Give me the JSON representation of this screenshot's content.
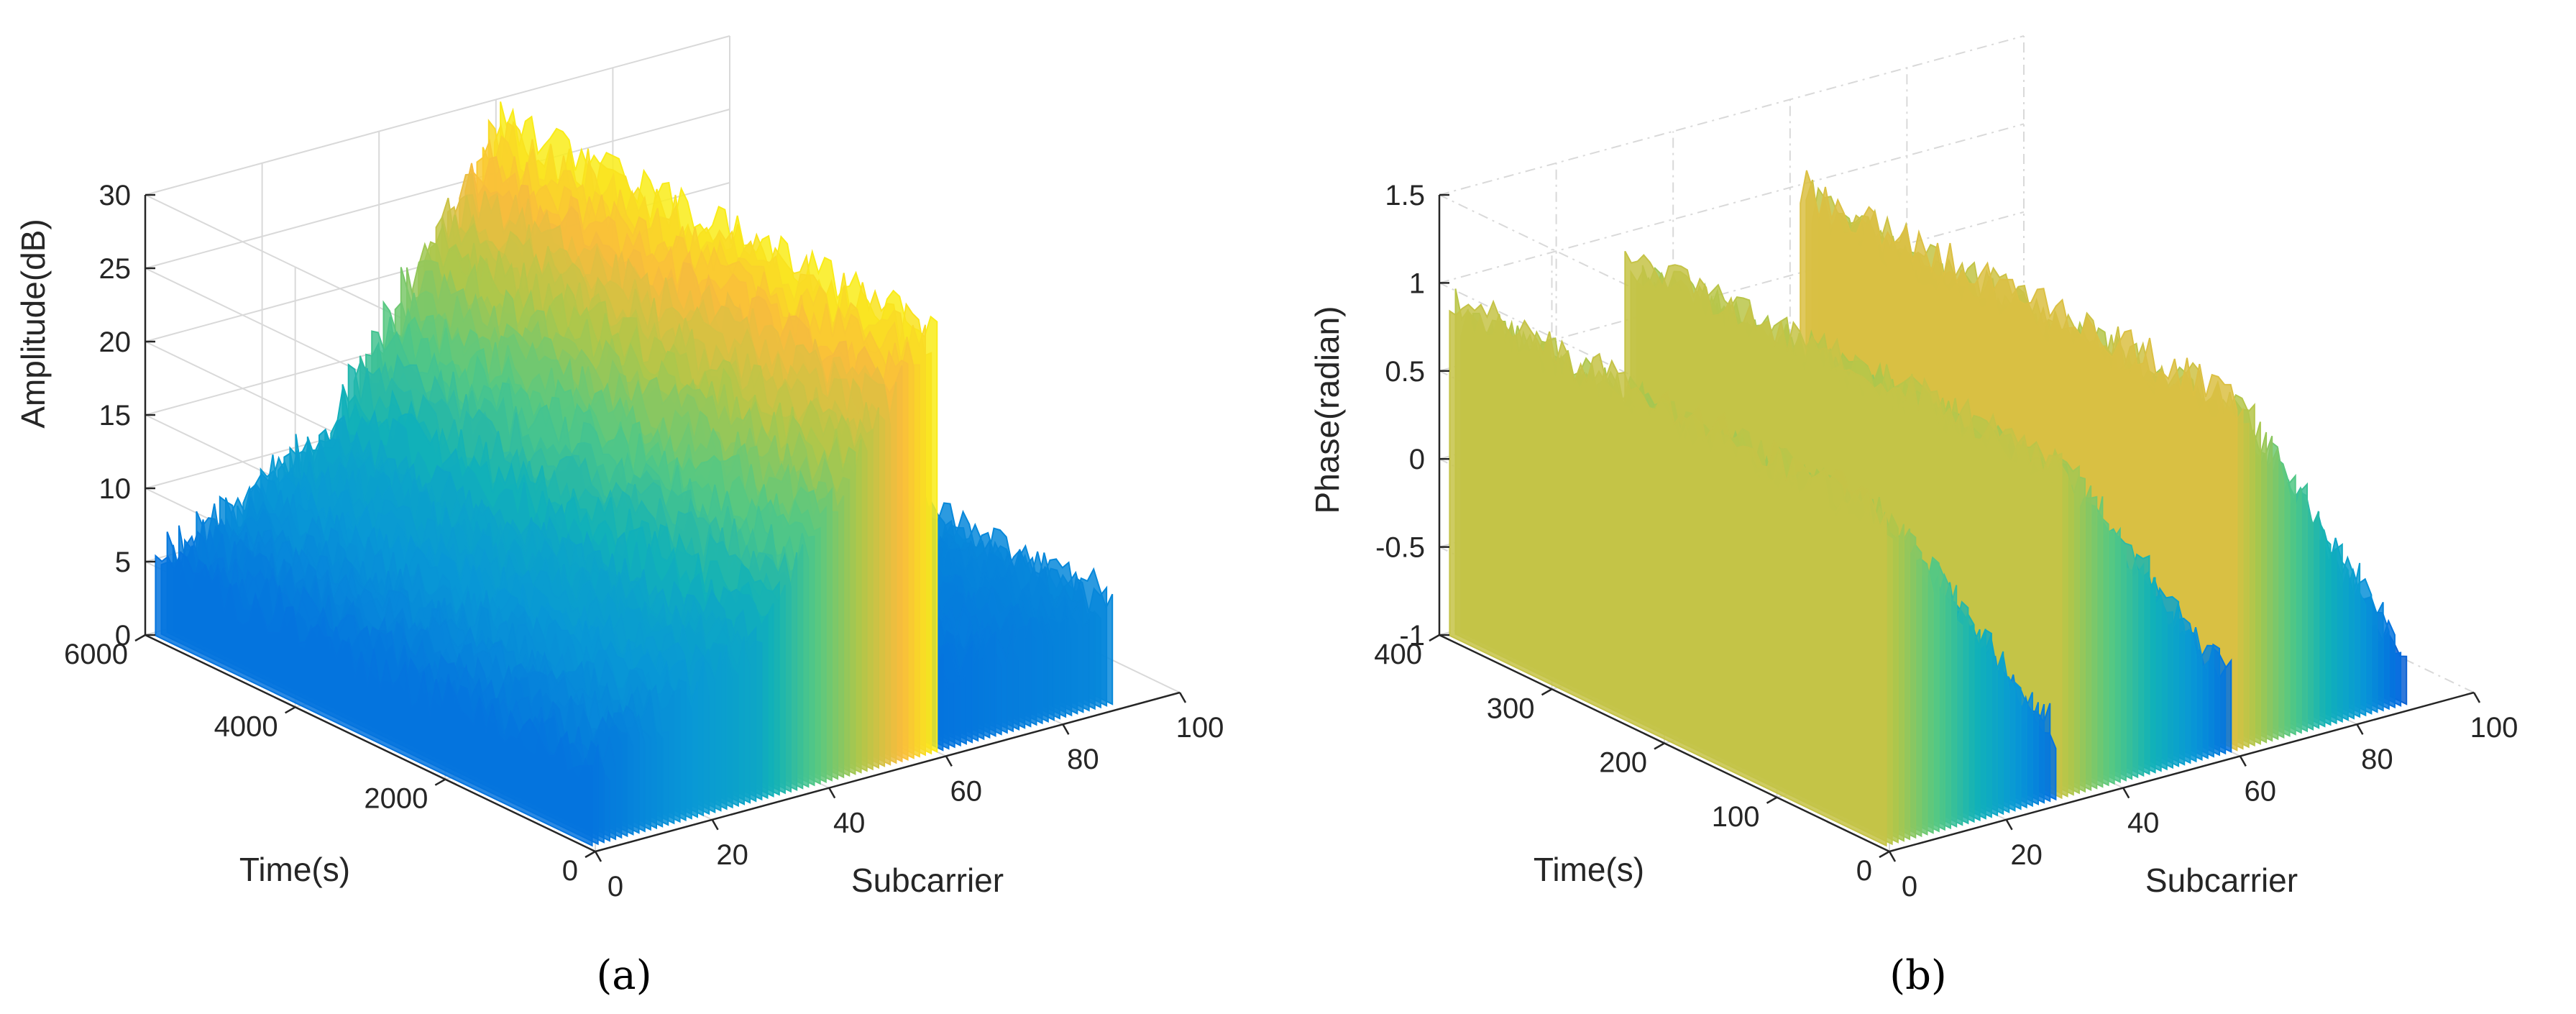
{
  "chart_data": [
    {
      "type": "surface3d",
      "caption": "(a)",
      "xlabel": "Subcarrier",
      "ylabel": "Time(s)",
      "zlabel": "Amplitude(dB)",
      "x_ticks": [
        "0",
        "20",
        "40",
        "60",
        "80",
        "100"
      ],
      "y_ticks": [
        "0",
        "2000",
        "4000",
        "6000"
      ],
      "z_ticks": [
        "0",
        "5",
        "10",
        "15",
        "20",
        "25",
        "30"
      ],
      "xlim": [
        0,
        100
      ],
      "ylim": [
        0,
        6000
      ],
      "zlim": [
        0,
        30
      ],
      "colormap": "parula",
      "grid": true,
      "grid_style": "solid",
      "subcarrier_segments": [
        [
          1,
          30
        ],
        [
          31,
          60
        ],
        [
          61,
          90
        ]
      ],
      "segment_profiles": [
        {
          "z_start": 5,
          "z_end": 11
        },
        {
          "z_start": 12,
          "z_end": 29
        },
        {
          "z_start": 5,
          "z_end": 7
        }
      ],
      "noise_amplitude": 1.6
    },
    {
      "type": "surface3d",
      "caption": "(b)",
      "xlabel": "Subcarrier",
      "ylabel": "Time(s)",
      "zlabel": "Phase(radian)",
      "x_ticks": [
        "0",
        "20",
        "40",
        "60",
        "80",
        "100"
      ],
      "y_ticks": [
        "0",
        "100",
        "200",
        "300",
        "400"
      ],
      "z_ticks": [
        "-1",
        "-0.5",
        "0",
        "0.5",
        "1",
        "1.5"
      ],
      "xlim": [
        0,
        100
      ],
      "ylim": [
        0,
        400
      ],
      "zlim": [
        -1,
        1.5
      ],
      "colormap": "parula",
      "grid": true,
      "grid_style": "dash-dot",
      "subcarrier_segments": [
        [
          1,
          30
        ],
        [
          31,
          60
        ],
        [
          61,
          90
        ]
      ],
      "segment_profiles": [
        {
          "z_start": 0.9,
          "z_end": -0.6
        },
        {
          "z_start": 0.9,
          "z_end": -0.6
        },
        {
          "z_start": 1.0,
          "z_end": -0.7
        }
      ],
      "noise_amplitude": 0.12
    }
  ]
}
